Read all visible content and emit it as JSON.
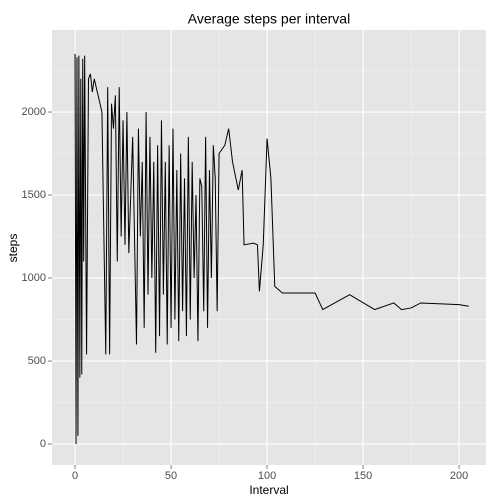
{
  "chart_data": {
    "type": "line",
    "title": "Average steps per interval",
    "x_label": "Interval",
    "y_label": "steps",
    "x": [
      0,
      0.5,
      1,
      1.5,
      2,
      2.5,
      3,
      3.5,
      4,
      4.5,
      5,
      6,
      7,
      8,
      9,
      10,
      12,
      14,
      16,
      17,
      18,
      19,
      20,
      21,
      22,
      23,
      24,
      25,
      26,
      27,
      28,
      30,
      32,
      33,
      34,
      35,
      36,
      37,
      38,
      39,
      40,
      41,
      42,
      43,
      44,
      45,
      46,
      47,
      48,
      49,
      50,
      51,
      52,
      53,
      54,
      55,
      56,
      57,
      58,
      59,
      60,
      61,
      62,
      63,
      64,
      65,
      66,
      67,
      68,
      69,
      70,
      71,
      72,
      73,
      74,
      75,
      78,
      80,
      82,
      85,
      87,
      88,
      93,
      95,
      96,
      98,
      100,
      102,
      104,
      108,
      125,
      129,
      143,
      156,
      166,
      170,
      175,
      180,
      200,
      205
    ],
    "series": [
      {
        "name": "steps",
        "color": "#000000",
        "values": [
          2350,
          0,
          2330,
          50,
          2340,
          400,
          2200,
          420,
          2320,
          1100,
          2340,
          540,
          2200,
          2230,
          2120,
          2200,
          2100,
          2000,
          540,
          2150,
          540,
          2050,
          1900,
          2100,
          1100,
          2150,
          1250,
          1950,
          1200,
          2000,
          1150,
          1850,
          600,
          1900,
          1250,
          1700,
          700,
          2000,
          900,
          1850,
          1000,
          1700,
          550,
          1800,
          650,
          1950,
          900,
          1700,
          600,
          1800,
          700,
          1900,
          750,
          1650,
          620,
          1750,
          800,
          1600,
          650,
          1850,
          750,
          1700,
          1000,
          1500,
          620,
          1600,
          1550,
          800,
          1850,
          700,
          1650,
          1000,
          1800,
          1600,
          800,
          1750,
          1800,
          1900,
          1700,
          1530,
          1650,
          1200,
          1210,
          1200,
          920,
          1200,
          1840,
          1600,
          950,
          910,
          910,
          810,
          900,
          810,
          850,
          810,
          820,
          850,
          840,
          830
        ]
      }
    ],
    "xlim": [
      -12,
      214
    ],
    "ylim": [
      -126,
      2494
    ],
    "xticks": [
      0,
      50,
      100,
      150,
      200
    ],
    "yticks": [
      0,
      500,
      1000,
      1500,
      2000
    ],
    "x_minor_grid": [
      25,
      75,
      125,
      175
    ],
    "y_minor_grid": [
      250,
      750,
      1250,
      1750,
      2250
    ],
    "grid": true
  }
}
